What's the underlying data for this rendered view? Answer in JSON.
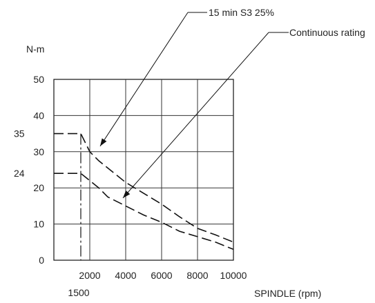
{
  "chart_data": {
    "type": "line",
    "ylabel": "N-m",
    "xlabel": "SPINDLE (rpm)",
    "xlim": [
      0,
      10000
    ],
    "ylim": [
      0,
      50
    ],
    "grid": true,
    "x_ticks": [
      "2000",
      "4000",
      "6000",
      "8000",
      "10000"
    ],
    "y_ticks": [
      "0",
      "10",
      "20",
      "30",
      "40",
      "50"
    ],
    "extra_x_tick": "1500",
    "extra_y_ticks": [
      "35",
      "24"
    ],
    "series": [
      {
        "name": "15 min S3 25%",
        "x": [
          0,
          1500,
          2000,
          2500,
          3000,
          4000,
          5000,
          6000,
          7000,
          8000,
          9000,
          10000
        ],
        "y": [
          35,
          35,
          30,
          27.5,
          25.5,
          21.5,
          18.5,
          15.5,
          12,
          8.8,
          7,
          5
        ]
      },
      {
        "name": "Continuous rating",
        "x": [
          0,
          1500,
          2000,
          2500,
          3000,
          4000,
          5000,
          6000,
          7000,
          8000,
          9000,
          10000
        ],
        "y": [
          24,
          24,
          22,
          20,
          17.5,
          15,
          12.5,
          10.5,
          8,
          6.5,
          5,
          3
        ]
      }
    ],
    "annotations": [
      "15 min S3 25%",
      "Continuous rating"
    ]
  }
}
